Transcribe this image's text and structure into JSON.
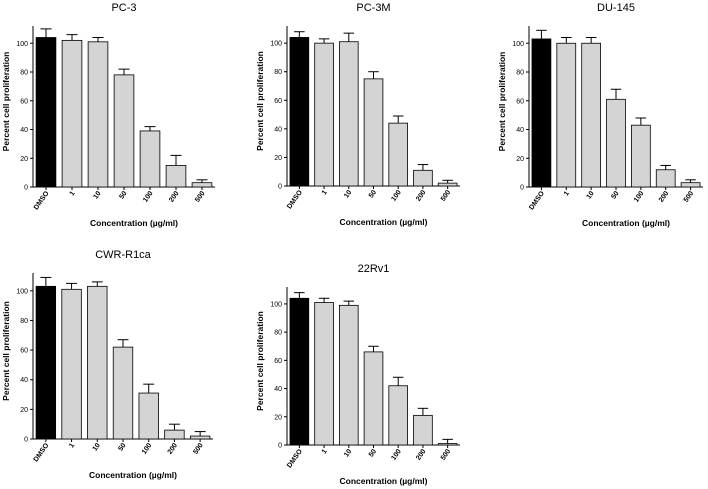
{
  "colors": {
    "control_bar": "#000000",
    "treatment_bar": "#d4d4d4",
    "bar_stroke": "#000000",
    "axis": "#000000"
  },
  "chart_data": [
    {
      "type": "bar",
      "title": "PC-3",
      "xlabel": "Concentration (µg/ml)",
      "ylabel": "Percent cell proliferation",
      "categories": [
        "DMSO",
        "1",
        "10",
        "50",
        "100",
        "200",
        "500"
      ],
      "values": [
        104,
        102,
        101,
        78,
        39,
        15,
        3
      ],
      "errors": [
        6,
        4,
        3,
        4,
        3,
        7,
        2
      ],
      "yticks": [
        0,
        20,
        40,
        60,
        80,
        100
      ],
      "ylim": [
        0,
        112
      ],
      "grid": false
    },
    {
      "type": "bar",
      "title": "PC-3M",
      "xlabel": "Concentration (µg/ml)",
      "ylabel": "Percent cell proliferation",
      "categories": [
        "DMSO",
        "1",
        "10",
        "50",
        "100",
        "200",
        "500"
      ],
      "values": [
        104,
        100,
        101,
        75,
        44,
        11,
        2
      ],
      "errors": [
        4,
        3,
        6,
        5,
        5,
        4,
        2
      ],
      "yticks": [
        0,
        20,
        40,
        60,
        80,
        100
      ],
      "ylim": [
        0,
        112
      ],
      "grid": false
    },
    {
      "type": "bar",
      "title": "DU-145",
      "xlabel": "Concentration (µg/ml)",
      "ylabel": "Percent cell proliferation",
      "categories": [
        "DMSO",
        "1",
        "10",
        "50",
        "100",
        "200",
        "500"
      ],
      "values": [
        103,
        100,
        100,
        61,
        43,
        12,
        3
      ],
      "errors": [
        6,
        4,
        4,
        7,
        5,
        3,
        2
      ],
      "yticks": [
        0,
        20,
        40,
        60,
        80,
        100
      ],
      "ylim": [
        0,
        112
      ],
      "grid": false
    },
    {
      "type": "bar",
      "title": "CWR-R1ca",
      "xlabel": "Concentration (µg/ml)",
      "ylabel": "Percent cell proliferation",
      "categories": [
        "DMSO",
        "1",
        "10",
        "50",
        "100",
        "200",
        "500"
      ],
      "values": [
        103,
        101,
        103,
        62,
        31,
        6,
        2
      ],
      "errors": [
        6,
        4,
        3,
        5,
        6,
        4,
        3
      ],
      "yticks": [
        0,
        20,
        40,
        60,
        80,
        100
      ],
      "ylim": [
        0,
        112
      ],
      "grid": false
    },
    {
      "type": "bar",
      "title": "22Rv1",
      "xlabel": "Concentration (µg/ml)",
      "ylabel": "Percent cell proliferation",
      "categories": [
        "DMSO",
        "1",
        "10",
        "50",
        "100",
        "200",
        "500"
      ],
      "values": [
        104,
        101,
        99,
        66,
        42,
        21,
        1
      ],
      "errors": [
        4,
        3,
        3,
        4,
        6,
        5,
        3
      ],
      "yticks": [
        0,
        20,
        40,
        60,
        80,
        100
      ],
      "ylim": [
        0,
        112
      ],
      "grid": false
    }
  ]
}
